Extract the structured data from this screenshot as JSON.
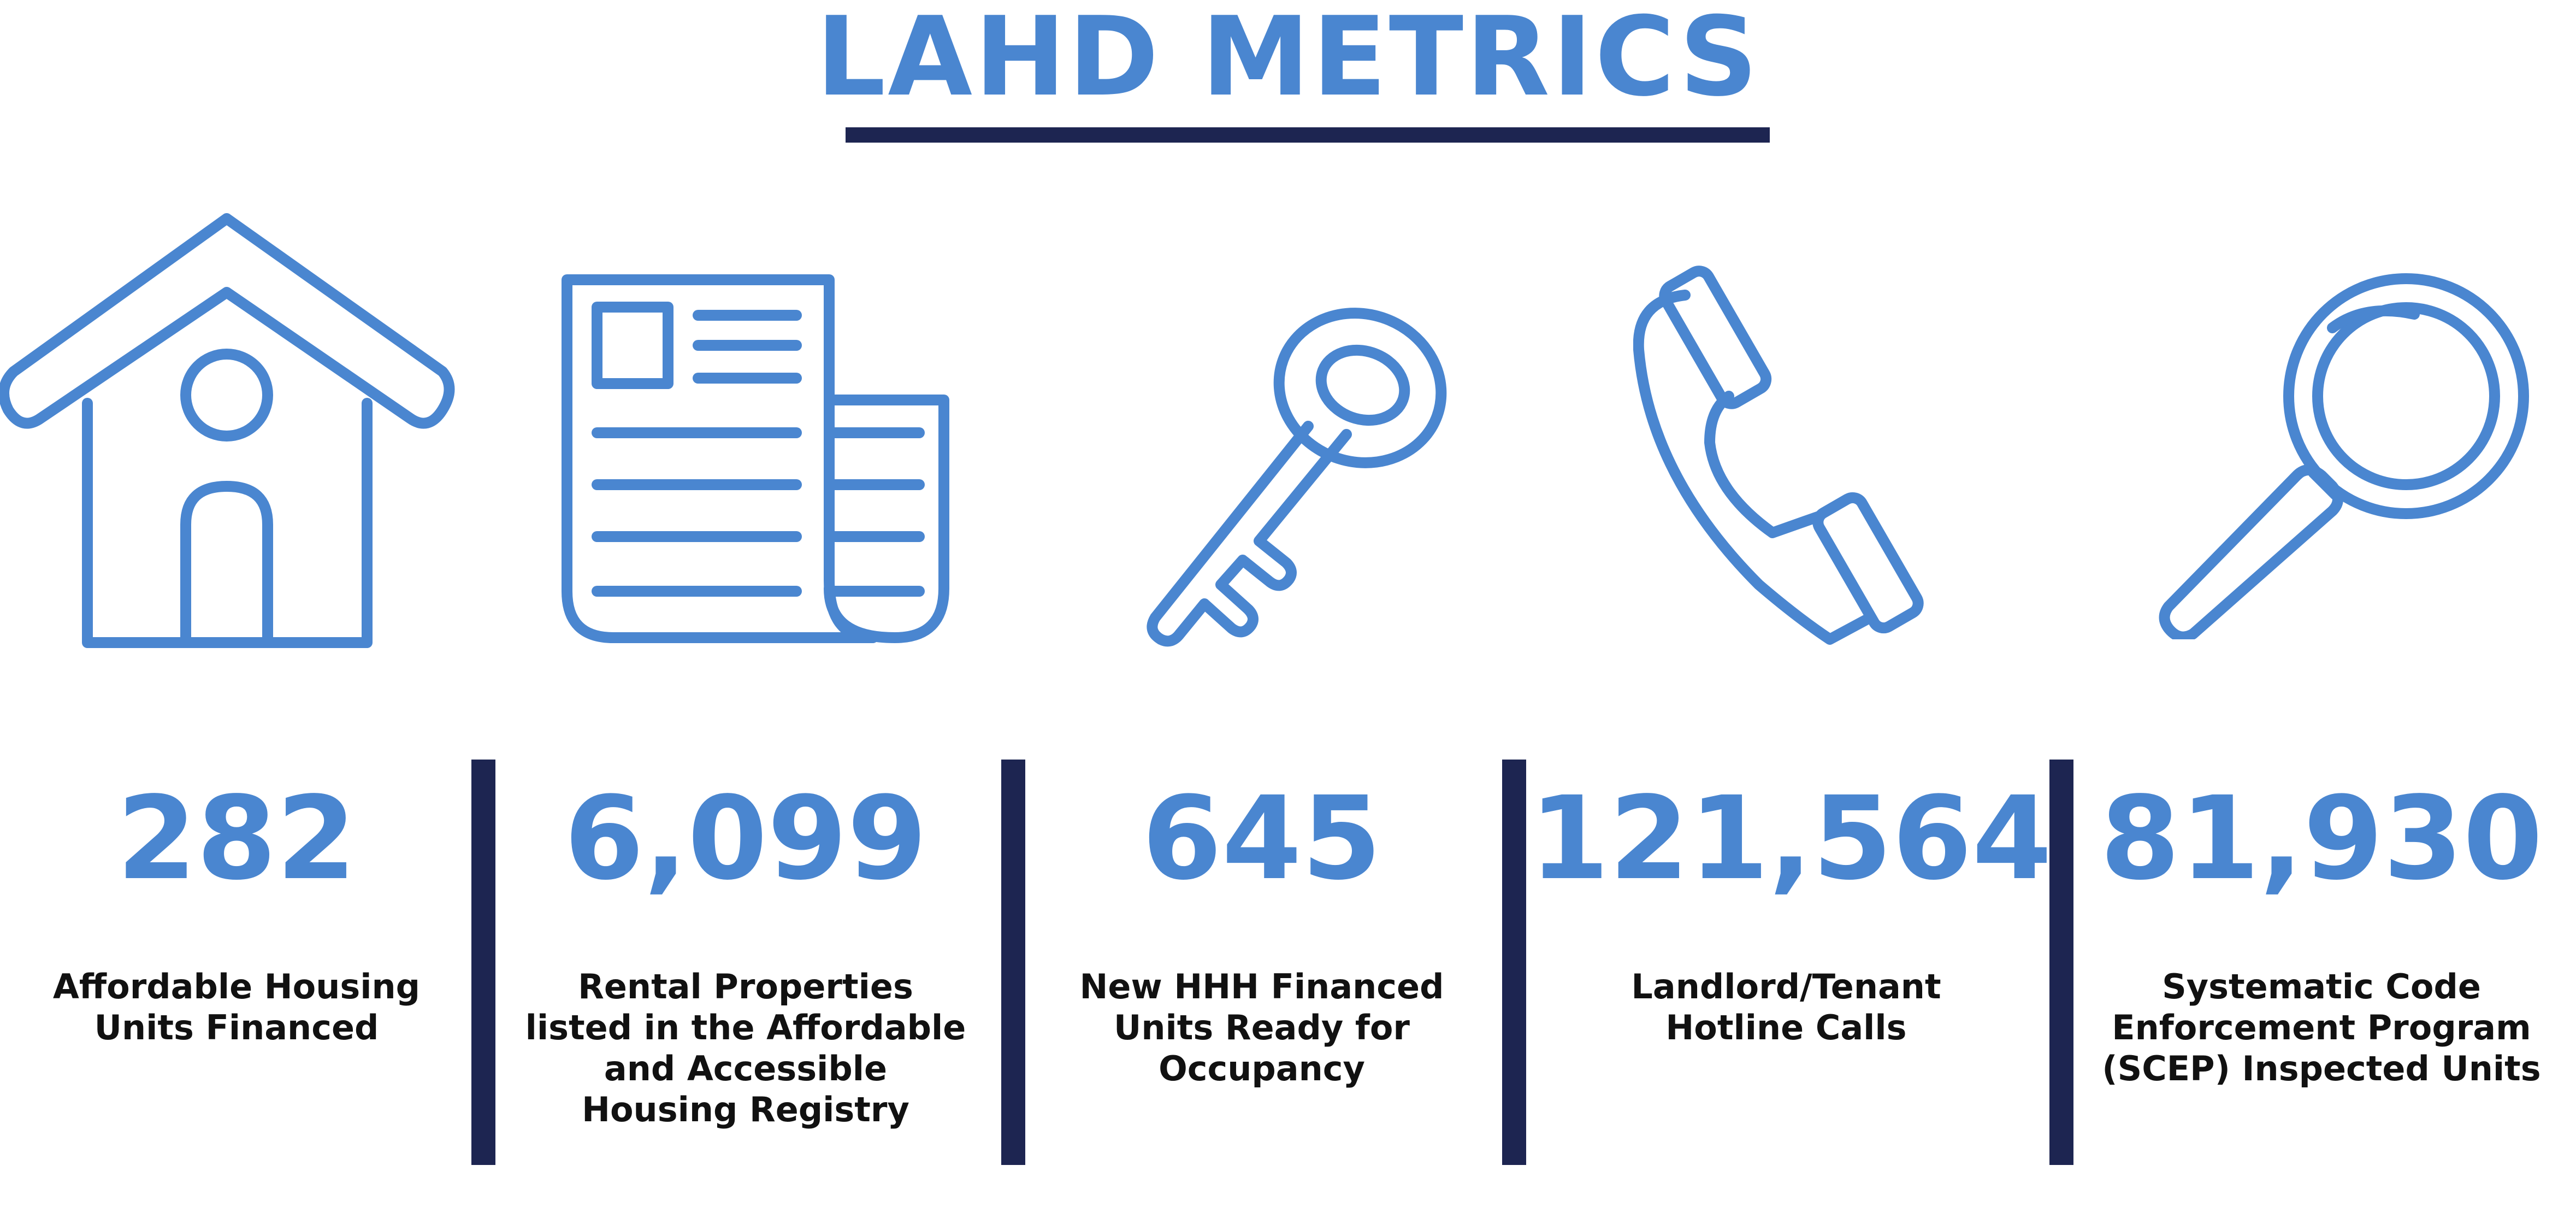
{
  "title": "LAHD METRICS",
  "colors": {
    "accent": "#4a86d0",
    "rule": "#1d2551",
    "label": "#111111"
  },
  "metrics": [
    {
      "icon": "house-icon",
      "value": "282",
      "label_lines": [
        "Affordable Housing",
        "Units Financed"
      ]
    },
    {
      "icon": "document-icon",
      "value": "6,099",
      "label_lines": [
        "Rental Properties",
        "listed in the Affordable",
        "and Accessible",
        "Housing Registry"
      ]
    },
    {
      "icon": "key-icon",
      "value": "645",
      "label_lines": [
        "New HHH Financed",
        "Units Ready for",
        "Occupancy"
      ]
    },
    {
      "icon": "phone-icon",
      "value": "121,564",
      "label_lines": [
        "Landlord/Tenant",
        "Hotline Calls"
      ]
    },
    {
      "icon": "magnifying-glass-icon",
      "value": "81,930",
      "label_lines": [
        "Systematic Code",
        "Enforcement Program",
        "(SCEP) Inspected Units"
      ]
    }
  ]
}
